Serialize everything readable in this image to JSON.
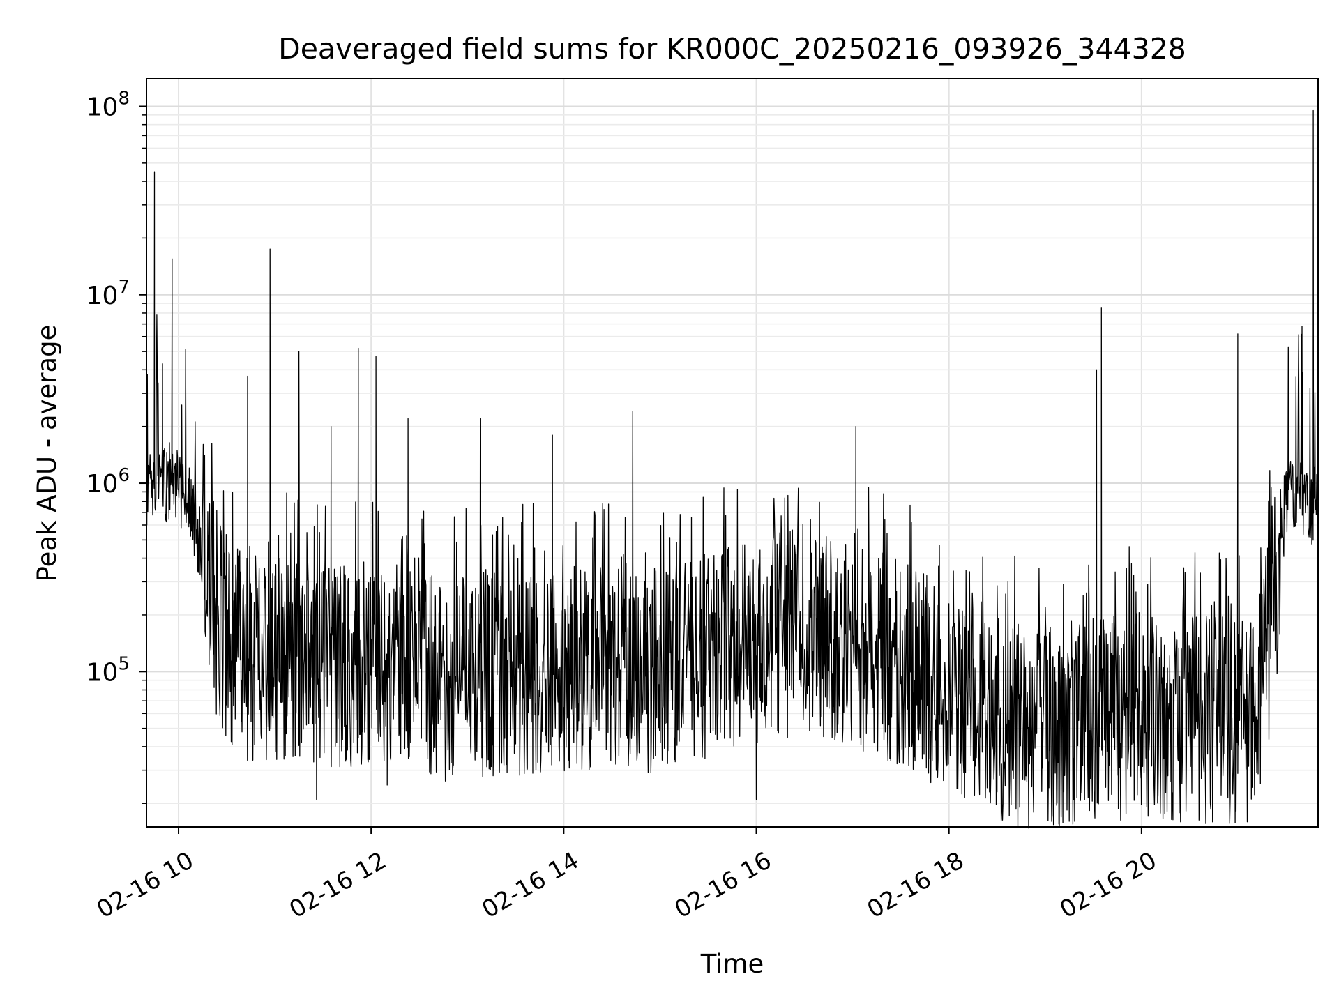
{
  "chart_data": {
    "type": "line",
    "title": "Deaveraged field sums for KR000C_20250216_093926_344328",
    "xlabel": "Time",
    "ylabel": "Peak ADU - average",
    "x_is_time": true,
    "xlim": [
      "2025-02-16 09:40",
      "2025-02-16 21:50"
    ],
    "ylim": [
      15000,
      140000000
    ],
    "yscale": "log",
    "grid": true,
    "legend": "none",
    "line_color": "#000000",
    "x_ticks": [
      {
        "t": "2025-02-16 10:00",
        "label": "02-16 10"
      },
      {
        "t": "2025-02-16 12:00",
        "label": "02-16 12"
      },
      {
        "t": "2025-02-16 14:00",
        "label": "02-16 14"
      },
      {
        "t": "2025-02-16 16:00",
        "label": "02-16 16"
      },
      {
        "t": "2025-02-16 18:00",
        "label": "02-16 18"
      },
      {
        "t": "2025-02-16 20:00",
        "label": "02-16 20"
      }
    ],
    "y_ticks": [
      {
        "v": 100000,
        "base": "10",
        "exp": "5"
      },
      {
        "v": 1000000,
        "base": "10",
        "exp": "6"
      },
      {
        "v": 10000000,
        "base": "10",
        "exp": "7"
      },
      {
        "v": 100000000,
        "base": "10",
        "exp": "8"
      }
    ],
    "series": [
      {
        "baseline": [
          [
            "2025-02-16 09:40",
            1000000
          ],
          [
            "2025-02-16 09:55",
            1100000
          ],
          [
            "2025-02-16 10:05",
            900000
          ],
          [
            "2025-02-16 10:15",
            500000
          ],
          [
            "2025-02-16 10:25",
            180000
          ],
          [
            "2025-02-16 10:40",
            120000
          ],
          [
            "2025-02-16 11:30",
            110000
          ],
          [
            "2025-02-16 12:15",
            110000
          ],
          [
            "2025-02-16 12:45",
            90000
          ],
          [
            "2025-02-16 13:30",
            100000
          ],
          [
            "2025-02-16 14:00",
            100000
          ],
          [
            "2025-02-16 14:30",
            110000
          ],
          [
            "2025-02-16 15:00",
            100000
          ],
          [
            "2025-02-16 15:30",
            120000
          ],
          [
            "2025-02-16 16:00",
            140000
          ],
          [
            "2025-02-16 16:30",
            160000
          ],
          [
            "2025-02-16 17:00",
            140000
          ],
          [
            "2025-02-16 17:30",
            110000
          ],
          [
            "2025-02-16 18:00",
            80000
          ],
          [
            "2025-02-16 18:30",
            55000
          ],
          [
            "2025-02-16 19:00",
            50000
          ],
          [
            "2025-02-16 19:30",
            55000
          ],
          [
            "2025-02-16 20:00",
            60000
          ],
          [
            "2025-02-16 20:30",
            55000
          ],
          [
            "2025-02-16 21:10",
            55000
          ],
          [
            "2025-02-16 21:20",
            150000
          ],
          [
            "2025-02-16 21:30",
            900000
          ],
          [
            "2025-02-16 21:50",
            800000
          ]
        ],
        "spikes": [
          [
            "2025-02-16 09:45",
            45000000
          ],
          [
            "2025-02-16 09:50",
            4300000
          ],
          [
            "2025-02-16 09:56",
            15500000
          ],
          [
            "2025-02-16 10:02",
            2600000
          ],
          [
            "2025-02-16 10:43",
            3700000
          ],
          [
            "2025-02-16 10:57",
            17500000
          ],
          [
            "2025-02-16 11:15",
            5000000
          ],
          [
            "2025-02-16 11:35",
            2000000
          ],
          [
            "2025-02-16 11:52",
            5200000
          ],
          [
            "2025-02-16 12:03",
            4700000
          ],
          [
            "2025-02-16 12:23",
            2200000
          ],
          [
            "2025-02-16 13:08",
            2200000
          ],
          [
            "2025-02-16 13:53",
            1800000
          ],
          [
            "2025-02-16 14:43",
            2400000
          ],
          [
            "2025-02-16 17:02",
            2000000
          ],
          [
            "2025-02-16 19:32",
            4000000
          ],
          [
            "2025-02-16 19:35",
            8500000
          ],
          [
            "2025-02-16 21:00",
            6200000
          ],
          [
            "2025-02-16 21:40",
            6800000
          ],
          [
            "2025-02-16 21:47",
            95000000
          ]
        ],
        "troughs": [
          [
            "2025-02-16 11:26",
            21000
          ],
          [
            "2025-02-16 12:10",
            25000
          ],
          [
            "2025-02-16 16:00",
            21000
          ],
          [
            "2025-02-16 18:30",
            23000
          ],
          [
            "2025-02-16 19:10",
            23000
          ]
        ]
      }
    ]
  }
}
